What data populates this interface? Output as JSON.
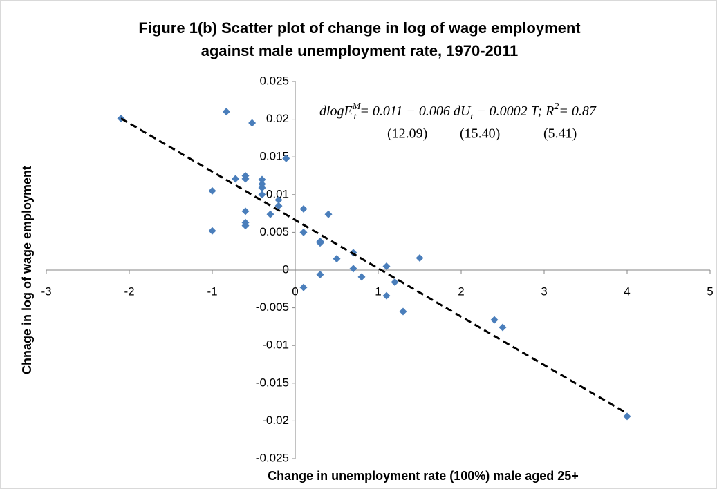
{
  "chart_data": {
    "type": "scatter",
    "title": [
      "Figure 1(b) Scatter plot of change in log of wage employment",
      "against male unemployment rate, 1970-2011"
    ],
    "x_label": "Change in unemployment rate (100%) male aged 25+",
    "y_label": "Chnage in log of wage employment",
    "equation": [
      {
        "text": "dlogE"
      },
      {
        "sup": "M"
      },
      {
        "sub": "t"
      },
      {
        "text": " = 0.011 − 0.006 dU"
      },
      {
        "sub": "t"
      },
      {
        "text": " − 0.0002 T; R"
      },
      {
        "sup": "2"
      },
      {
        "text": "= 0.87"
      }
    ],
    "t_stats": [
      "(12.09)",
      "(15.40)",
      "(5.41)"
    ],
    "color": "#4a7ebb",
    "x": [
      -2.1,
      -0.83,
      -0.52,
      -0.11,
      -1.0,
      -1.0,
      -0.72,
      -0.6,
      -0.6,
      -0.6,
      -0.6,
      -0.6,
      -0.4,
      -0.4,
      -0.4,
      -0.4,
      -0.3,
      -0.2,
      -0.2,
      0.1,
      0.1,
      0.1,
      0.3,
      0.3,
      0.3,
      0.4,
      0.5,
      0.7,
      0.7,
      0.8,
      1.1,
      1.1,
      1.2,
      1.3,
      1.5,
      2.4,
      2.5,
      4.0
    ],
    "values": [
      0.0201,
      0.021,
      0.0195,
      0.0148,
      0.0105,
      0.0052,
      0.0121,
      0.0125,
      0.0121,
      0.0078,
      0.0063,
      0.0059,
      0.012,
      0.0114,
      0.0109,
      0.01,
      0.0074,
      0.0093,
      0.0085,
      0.0081,
      0.005,
      -0.0023,
      0.0038,
      0.0036,
      -0.0006,
      0.0074,
      0.0015,
      0.0023,
      0.0002,
      -0.0009,
      0.0005,
      -0.0034,
      -0.0016,
      -0.0055,
      0.0016,
      -0.0066,
      -0.0076,
      -0.0194
    ],
    "trendline": {
      "x": [
        -2.1,
        4.0
      ],
      "y": [
        0.0201,
        -0.019
      ]
    },
    "xlim": [
      -3,
      5
    ],
    "xticks": [
      -3,
      -2,
      -1,
      0,
      1,
      2,
      3,
      4,
      5
    ],
    "ylim": [
      -0.025,
      0.025
    ],
    "yticks": [
      -0.025,
      -0.02,
      -0.015,
      -0.01,
      -0.005,
      0,
      0.005,
      0.01,
      0.015,
      0.02,
      0.025
    ]
  }
}
